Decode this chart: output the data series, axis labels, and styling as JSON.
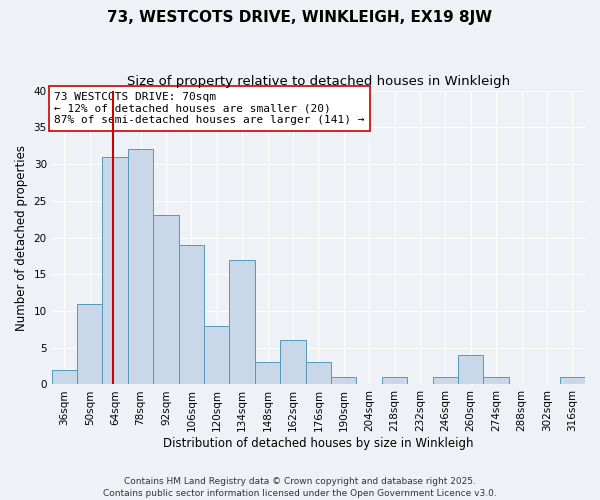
{
  "title": "73, WESTCOTS DRIVE, WINKLEIGH, EX19 8JW",
  "subtitle": "Size of property relative to detached houses in Winkleigh",
  "xlabel": "Distribution of detached houses by size in Winkleigh",
  "ylabel": "Number of detached properties",
  "bin_labels": [
    "36sqm",
    "50sqm",
    "64sqm",
    "78sqm",
    "92sqm",
    "106sqm",
    "120sqm",
    "134sqm",
    "148sqm",
    "162sqm",
    "176sqm",
    "190sqm",
    "204sqm",
    "218sqm",
    "232sqm",
    "246sqm",
    "260sqm",
    "274sqm",
    "288sqm",
    "302sqm",
    "316sqm"
  ],
  "bin_edges": [
    36,
    50,
    64,
    78,
    92,
    106,
    120,
    134,
    148,
    162,
    176,
    190,
    204,
    218,
    232,
    246,
    260,
    274,
    288,
    302,
    316,
    330
  ],
  "counts": [
    2,
    11,
    31,
    32,
    23,
    19,
    8,
    17,
    3,
    6,
    3,
    1,
    0,
    1,
    0,
    1,
    4,
    1,
    0,
    0,
    1
  ],
  "bar_color": "#c8d8e8",
  "bar_edge_color": "#5599bb",
  "vline_color": "#cc0000",
  "vline_x": 70,
  "annotation_text": "73 WESTCOTS DRIVE: 70sqm\n← 12% of detached houses are smaller (20)\n87% of semi-detached houses are larger (141) →",
  "annotation_box_color": "#ffffff",
  "annotation_box_edge_color": "#cc0000",
  "ylim": [
    0,
    40
  ],
  "yticks": [
    0,
    5,
    10,
    15,
    20,
    25,
    30,
    35,
    40
  ],
  "background_color": "#eef2f7",
  "footer_text": "Contains HM Land Registry data © Crown copyright and database right 2025.\nContains public sector information licensed under the Open Government Licence v3.0.",
  "title_fontsize": 11,
  "subtitle_fontsize": 9.5,
  "axis_label_fontsize": 8.5,
  "tick_fontsize": 7.5,
  "annotation_fontsize": 8,
  "footer_fontsize": 6.5
}
